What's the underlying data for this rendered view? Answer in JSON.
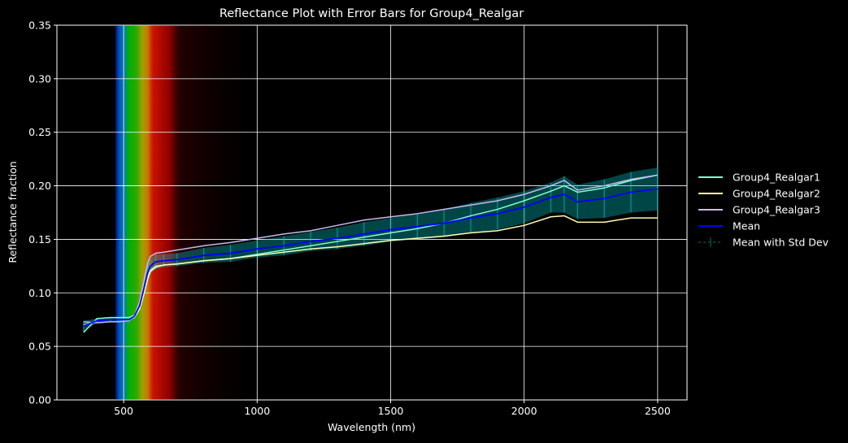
{
  "chart_data": {
    "type": "line",
    "title": "Reflectance Plot with Error Bars for Group4_Realgar",
    "xlabel": "Wavelength (nm)",
    "ylabel": "Reflectance fraction",
    "xlim": [
      250,
      2610
    ],
    "ylim": [
      0,
      0.35
    ],
    "xticks": [
      500,
      1000,
      1500,
      2000,
      2500
    ],
    "yticks": [
      0.0,
      0.05,
      0.1,
      0.15,
      0.2,
      0.25,
      0.3,
      0.35
    ],
    "xtick_labels": [
      "500",
      "1000",
      "1500",
      "2000",
      "2500"
    ],
    "ytick_labels": [
      "0.00",
      "0.05",
      "0.10",
      "0.15",
      "0.20",
      "0.25",
      "0.30",
      "0.35"
    ],
    "grid": true,
    "legend_position": "right-outside",
    "background": "#000000",
    "spectrum_band": {
      "start_nm": 470,
      "end_nm": 950
    },
    "x": [
      350,
      400,
      450,
      480,
      520,
      540,
      560,
      575,
      590,
      600,
      620,
      650,
      700,
      800,
      900,
      1000,
      1100,
      1200,
      1300,
      1400,
      1500,
      1600,
      1700,
      1800,
      1900,
      2000,
      2100,
      2150,
      2200,
      2300,
      2400,
      2500
    ],
    "series": [
      {
        "name": "Group4_Realgar1",
        "color": "#7fffd4",
        "values": [
          0.063,
          0.076,
          0.077,
          0.077,
          0.077,
          0.079,
          0.086,
          0.1,
          0.115,
          0.121,
          0.125,
          0.126,
          0.127,
          0.13,
          0.132,
          0.136,
          0.14,
          0.144,
          0.148,
          0.152,
          0.156,
          0.16,
          0.165,
          0.172,
          0.178,
          0.186,
          0.195,
          0.2,
          0.194,
          0.198,
          0.205,
          0.21
        ]
      },
      {
        "name": "Group4_Realgar2",
        "color": "#ffffb0",
        "values": [
          0.07,
          0.074,
          0.075,
          0.075,
          0.075,
          0.077,
          0.085,
          0.098,
          0.113,
          0.12,
          0.124,
          0.126,
          0.127,
          0.13,
          0.132,
          0.135,
          0.138,
          0.141,
          0.143,
          0.146,
          0.149,
          0.151,
          0.153,
          0.156,
          0.158,
          0.163,
          0.171,
          0.172,
          0.166,
          0.166,
          0.17,
          0.17
        ]
      },
      {
        "name": "Group4_Realgar3",
        "color": "#c8b8f0",
        "values": [
          0.073,
          0.072,
          0.073,
          0.073,
          0.074,
          0.078,
          0.092,
          0.11,
          0.128,
          0.134,
          0.137,
          0.138,
          0.14,
          0.144,
          0.147,
          0.151,
          0.155,
          0.158,
          0.163,
          0.168,
          0.171,
          0.174,
          0.178,
          0.182,
          0.186,
          0.192,
          0.2,
          0.205,
          0.196,
          0.2,
          0.206,
          0.21
        ]
      },
      {
        "name": "Mean",
        "color": "#0000ff",
        "values": [
          0.069,
          0.074,
          0.075,
          0.075,
          0.075,
          0.078,
          0.088,
          0.103,
          0.119,
          0.125,
          0.129,
          0.13,
          0.131,
          0.135,
          0.137,
          0.141,
          0.144,
          0.148,
          0.151,
          0.155,
          0.159,
          0.162,
          0.165,
          0.17,
          0.174,
          0.18,
          0.189,
          0.192,
          0.185,
          0.188,
          0.194,
          0.197
        ]
      },
      {
        "name": "Mean with Std Dev",
        "color": "#00c8c8",
        "values": [
          0.069,
          0.074,
          0.075,
          0.075,
          0.075,
          0.078,
          0.088,
          0.103,
          0.119,
          0.125,
          0.129,
          0.13,
          0.131,
          0.135,
          0.137,
          0.141,
          0.144,
          0.148,
          0.151,
          0.155,
          0.159,
          0.162,
          0.165,
          0.17,
          0.174,
          0.18,
          0.189,
          0.192,
          0.185,
          0.188,
          0.194,
          0.197
        ],
        "std": [
          0.005,
          0.002,
          0.002,
          0.002,
          0.002,
          0.001,
          0.003,
          0.005,
          0.008,
          0.007,
          0.007,
          0.006,
          0.006,
          0.007,
          0.008,
          0.008,
          0.009,
          0.009,
          0.01,
          0.011,
          0.011,
          0.012,
          0.013,
          0.014,
          0.015,
          0.015,
          0.014,
          0.017,
          0.016,
          0.018,
          0.019,
          0.02
        ]
      }
    ]
  }
}
